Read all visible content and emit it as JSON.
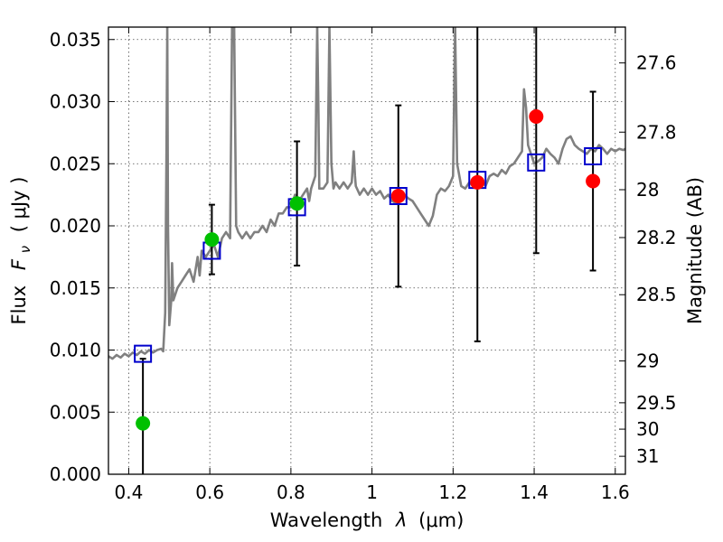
{
  "chart_data": {
    "type": "scatter",
    "xlabel_prefix": "Wavelength",
    "xlabel_symbol": "λ",
    "xlabel_unit": "(μm)",
    "ylabel_prefix": "Flux",
    "ylabel_symbol": "F",
    "ylabel_subscript": "ν",
    "ylabel_unit": "( μJy )",
    "right_ylabel": "Magnitude (AB)",
    "xlim": [
      0.35,
      1.625
    ],
    "ylim": [
      0.0,
      0.036
    ],
    "grid": true,
    "x_ticks": [
      {
        "value": 0.4,
        "label": "0.4"
      },
      {
        "value": 0.6,
        "label": "0.6"
      },
      {
        "value": 0.8,
        "label": "0.8"
      },
      {
        "value": 1.0,
        "label": "1"
      },
      {
        "value": 1.2,
        "label": "1.2"
      },
      {
        "value": 1.4,
        "label": "1.4"
      },
      {
        "value": 1.6,
        "label": "1.6"
      }
    ],
    "y_ticks": [
      {
        "value": 0.0,
        "label": "0.000"
      },
      {
        "value": 0.005,
        "label": "0.005"
      },
      {
        "value": 0.01,
        "label": "0.010"
      },
      {
        "value": 0.015,
        "label": "0.015"
      },
      {
        "value": 0.02,
        "label": "0.020"
      },
      {
        "value": 0.025,
        "label": "0.025"
      },
      {
        "value": 0.03,
        "label": "0.030"
      },
      {
        "value": 0.035,
        "label": "0.035"
      }
    ],
    "right_ticks": [
      {
        "mag": 27.6,
        "label": "27.6"
      },
      {
        "mag": 27.8,
        "label": "27.8"
      },
      {
        "mag": 28.0,
        "label": "28"
      },
      {
        "mag": 28.2,
        "label": "28.2"
      },
      {
        "mag": 28.5,
        "label": "28.5"
      },
      {
        "mag": 29.0,
        "label": "29"
      },
      {
        "mag": 29.5,
        "label": "29.5"
      },
      {
        "mag": 30.0,
        "label": "30"
      },
      {
        "mag": 31.0,
        "label": "31"
      }
    ],
    "colors": {
      "spectrum": "#808080",
      "green": "#00c000",
      "red": "#ff0000",
      "model_square": "#0000cc",
      "errorbar": "#000000"
    },
    "spectrum": [
      [
        0.35,
        0.0095
      ],
      [
        0.36,
        0.0093
      ],
      [
        0.37,
        0.0096
      ],
      [
        0.38,
        0.0094
      ],
      [
        0.39,
        0.0097
      ],
      [
        0.4,
        0.0095
      ],
      [
        0.41,
        0.0098
      ],
      [
        0.42,
        0.0096
      ],
      [
        0.43,
        0.0099
      ],
      [
        0.44,
        0.0097
      ],
      [
        0.45,
        0.01
      ],
      [
        0.46,
        0.0098
      ],
      [
        0.47,
        0.01
      ],
      [
        0.48,
        0.0101
      ],
      [
        0.485,
        0.0099
      ],
      [
        0.49,
        0.013
      ],
      [
        0.493,
        0.026
      ],
      [
        0.495,
        0.036
      ],
      [
        0.497,
        0.02
      ],
      [
        0.5,
        0.012
      ],
      [
        0.505,
        0.014
      ],
      [
        0.507,
        0.017
      ],
      [
        0.51,
        0.014
      ],
      [
        0.52,
        0.015
      ],
      [
        0.53,
        0.0155
      ],
      [
        0.54,
        0.016
      ],
      [
        0.55,
        0.0165
      ],
      [
        0.56,
        0.0155
      ],
      [
        0.57,
        0.0175
      ],
      [
        0.575,
        0.016
      ],
      [
        0.58,
        0.018
      ],
      [
        0.59,
        0.0175
      ],
      [
        0.6,
        0.018
      ],
      [
        0.61,
        0.0185
      ],
      [
        0.62,
        0.0175
      ],
      [
        0.63,
        0.019
      ],
      [
        0.64,
        0.0195
      ],
      [
        0.65,
        0.019
      ],
      [
        0.655,
        0.036
      ],
      [
        0.66,
        0.036
      ],
      [
        0.665,
        0.02
      ],
      [
        0.67,
        0.0195
      ],
      [
        0.68,
        0.019
      ],
      [
        0.69,
        0.0195
      ],
      [
        0.7,
        0.019
      ],
      [
        0.71,
        0.0195
      ],
      [
        0.72,
        0.0195
      ],
      [
        0.73,
        0.02
      ],
      [
        0.74,
        0.0195
      ],
      [
        0.75,
        0.0205
      ],
      [
        0.76,
        0.02
      ],
      [
        0.77,
        0.021
      ],
      [
        0.78,
        0.021
      ],
      [
        0.79,
        0.0215
      ],
      [
        0.8,
        0.0215
      ],
      [
        0.81,
        0.0225
      ],
      [
        0.82,
        0.022
      ],
      [
        0.83,
        0.0225
      ],
      [
        0.84,
        0.023
      ],
      [
        0.845,
        0.022
      ],
      [
        0.85,
        0.023
      ],
      [
        0.86,
        0.024
      ],
      [
        0.865,
        0.036
      ],
      [
        0.868,
        0.029
      ],
      [
        0.87,
        0.023
      ],
      [
        0.88,
        0.023
      ],
      [
        0.89,
        0.0235
      ],
      [
        0.895,
        0.036
      ],
      [
        0.9,
        0.025
      ],
      [
        0.905,
        0.023
      ],
      [
        0.91,
        0.0235
      ],
      [
        0.92,
        0.023
      ],
      [
        0.93,
        0.0235
      ],
      [
        0.94,
        0.023
      ],
      [
        0.95,
        0.0235
      ],
      [
        0.955,
        0.026
      ],
      [
        0.958,
        0.024
      ],
      [
        0.96,
        0.0232
      ],
      [
        0.97,
        0.0225
      ],
      [
        0.98,
        0.023
      ],
      [
        0.99,
        0.0225
      ],
      [
        1.0,
        0.023
      ],
      [
        1.01,
        0.0225
      ],
      [
        1.02,
        0.0228
      ],
      [
        1.03,
        0.0222
      ],
      [
        1.04,
        0.0225
      ],
      [
        1.05,
        0.022
      ],
      [
        1.06,
        0.0218
      ],
      [
        1.07,
        0.0222
      ],
      [
        1.08,
        0.0225
      ],
      [
        1.09,
        0.0222
      ],
      [
        1.1,
        0.022
      ],
      [
        1.11,
        0.0215
      ],
      [
        1.12,
        0.021
      ],
      [
        1.13,
        0.0205
      ],
      [
        1.14,
        0.02
      ],
      [
        1.15,
        0.0208
      ],
      [
        1.16,
        0.0225
      ],
      [
        1.17,
        0.023
      ],
      [
        1.18,
        0.0228
      ],
      [
        1.19,
        0.0232
      ],
      [
        1.2,
        0.024
      ],
      [
        1.205,
        0.036
      ],
      [
        1.21,
        0.025
      ],
      [
        1.22,
        0.0232
      ],
      [
        1.23,
        0.023
      ],
      [
        1.24,
        0.0235
      ],
      [
        1.25,
        0.0232
      ],
      [
        1.26,
        0.0235
      ],
      [
        1.27,
        0.0238
      ],
      [
        1.28,
        0.0232
      ],
      [
        1.29,
        0.024
      ],
      [
        1.3,
        0.0242
      ],
      [
        1.31,
        0.024
      ],
      [
        1.32,
        0.0245
      ],
      [
        1.33,
        0.0242
      ],
      [
        1.34,
        0.0248
      ],
      [
        1.35,
        0.025
      ],
      [
        1.36,
        0.0255
      ],
      [
        1.37,
        0.026
      ],
      [
        1.375,
        0.031
      ],
      [
        1.38,
        0.0295
      ],
      [
        1.385,
        0.0265
      ],
      [
        1.39,
        0.026
      ],
      [
        1.4,
        0.025
      ],
      [
        1.41,
        0.0252
      ],
      [
        1.42,
        0.0255
      ],
      [
        1.43,
        0.0262
      ],
      [
        1.44,
        0.0258
      ],
      [
        1.45,
        0.0255
      ],
      [
        1.46,
        0.025
      ],
      [
        1.47,
        0.0262
      ],
      [
        1.48,
        0.027
      ],
      [
        1.49,
        0.0272
      ],
      [
        1.5,
        0.0265
      ],
      [
        1.51,
        0.0262
      ],
      [
        1.52,
        0.026
      ],
      [
        1.53,
        0.0258
      ],
      [
        1.54,
        0.0262
      ],
      [
        1.55,
        0.026
      ],
      [
        1.56,
        0.0265
      ],
      [
        1.57,
        0.0262
      ],
      [
        1.58,
        0.0258
      ],
      [
        1.59,
        0.0262
      ],
      [
        1.6,
        0.026
      ],
      [
        1.61,
        0.0262
      ],
      [
        1.62,
        0.0261
      ],
      [
        1.625,
        0.0262
      ]
    ],
    "model_points": [
      {
        "x": 0.435,
        "y": 0.0097
      },
      {
        "x": 0.605,
        "y": 0.018
      },
      {
        "x": 0.815,
        "y": 0.0215
      },
      {
        "x": 1.065,
        "y": 0.0224
      },
      {
        "x": 1.26,
        "y": 0.0237
      },
      {
        "x": 1.405,
        "y": 0.0251
      },
      {
        "x": 1.545,
        "y": 0.0256
      }
    ],
    "observed_points": [
      {
        "x": 0.435,
        "y": 0.0041,
        "err": 0.0052,
        "color": "green"
      },
      {
        "x": 0.605,
        "y": 0.0189,
        "err": 0.0028,
        "color": "green"
      },
      {
        "x": 0.815,
        "y": 0.0218,
        "err": 0.005,
        "color": "green"
      },
      {
        "x": 1.065,
        "y": 0.0224,
        "err": 0.0073,
        "color": "red"
      },
      {
        "x": 1.26,
        "y": 0.0235,
        "err": 0.0128,
        "color": "red"
      },
      {
        "x": 1.405,
        "y": 0.0288,
        "err": 0.011,
        "color": "red"
      },
      {
        "x": 1.545,
        "y": 0.0236,
        "err": 0.0072,
        "color": "red"
      }
    ]
  }
}
